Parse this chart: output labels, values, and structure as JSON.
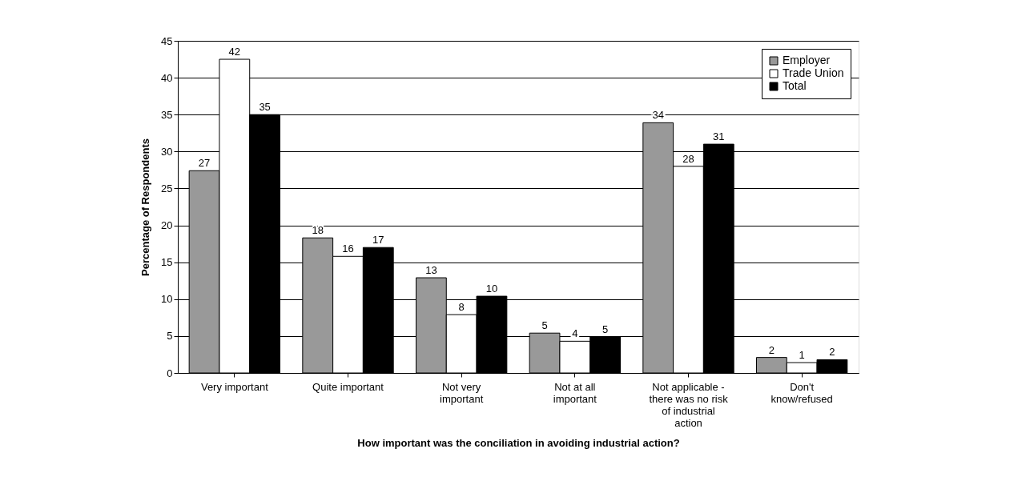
{
  "chart_data": {
    "type": "bar",
    "xlabel": "How important was the conciliation in avoiding industrial action?",
    "ylabel": "Percentage of Respondents",
    "categories": [
      "Very important",
      "Quite important",
      "Not very important",
      "Not at all important",
      "Not applicable - there was no risk of industrial action",
      "Don't know/refused"
    ],
    "series": [
      {
        "name": "Employer",
        "color": "#999999",
        "values": [
          27.4,
          18.3,
          12.9,
          5.4,
          33.9,
          2.1
        ],
        "value_labels": [
          "27",
          "18",
          "13",
          "5",
          "34",
          "2"
        ]
      },
      {
        "name": "Trade Union",
        "color": "#ffffff",
        "values": [
          42.5,
          15.8,
          7.9,
          4.3,
          28.0,
          1.4
        ],
        "value_labels": [
          "42",
          "16",
          "8",
          "4",
          "28",
          "1"
        ]
      },
      {
        "name": "Total",
        "color": "#000000",
        "values": [
          35.0,
          17.0,
          10.4,
          4.9,
          31.0,
          1.8
        ],
        "value_labels": [
          "35",
          "17",
          "10",
          "5",
          "31",
          "2"
        ]
      }
    ],
    "ylim": [
      0,
      45
    ],
    "yticks": [
      0,
      5,
      10,
      15,
      20,
      25,
      30,
      35,
      40,
      45
    ],
    "grid": "y",
    "legend": "top right"
  }
}
